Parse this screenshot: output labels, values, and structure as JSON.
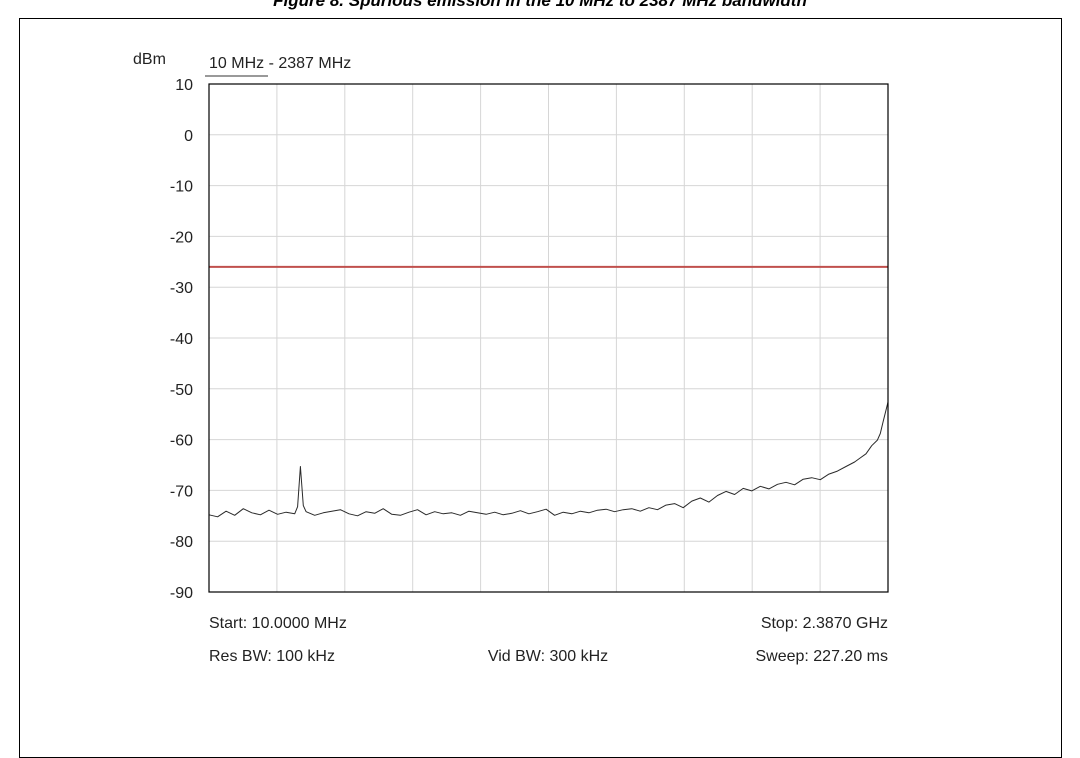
{
  "caption": "Figure 8. Spurious emission in the 10 MHz to 2387 MHz bandwidth",
  "chart_data": {
    "type": "line",
    "title": "10 MHz - 2387 MHz",
    "ylabel": "dBm",
    "xlabel": "",
    "xlim": [
      10,
      2387
    ],
    "ylim": [
      -90,
      10
    ],
    "yticks": [
      "10",
      "0",
      "-10",
      "-20",
      "-30",
      "-40",
      "-50",
      "-60",
      "-70",
      "-80",
      "-90"
    ],
    "grid": true,
    "x_divisions": 10,
    "series": [
      {
        "name": "",
        "color": "#2a2a2a",
        "x": [
          10,
          40,
          70,
          100,
          130,
          160,
          190,
          220,
          250,
          280,
          310,
          320,
          330,
          340,
          350,
          380,
          410,
          440,
          470,
          500,
          530,
          560,
          590,
          620,
          650,
          680,
          710,
          740,
          770,
          800,
          830,
          860,
          890,
          920,
          950,
          980,
          1010,
          1040,
          1070,
          1100,
          1130,
          1160,
          1190,
          1220,
          1250,
          1280,
          1310,
          1340,
          1370,
          1400,
          1430,
          1460,
          1490,
          1520,
          1550,
          1580,
          1610,
          1640,
          1670,
          1700,
          1730,
          1760,
          1790,
          1820,
          1850,
          1880,
          1910,
          1940,
          1970,
          2000,
          2030,
          2060,
          2090,
          2120,
          2150,
          2180,
          2210,
          2240,
          2270,
          2290,
          2310,
          2330,
          2350,
          2360,
          2370,
          2380,
          2387
        ],
        "values": [
          -74.8,
          -75.2,
          -74.1,
          -74.9,
          -73.6,
          -74.4,
          -74.8,
          -73.9,
          -74.7,
          -74.3,
          -74.6,
          -73.2,
          -65.3,
          -73.0,
          -74.2,
          -74.9,
          -74.4,
          -74.1,
          -73.8,
          -74.6,
          -75.0,
          -74.2,
          -74.5,
          -73.6,
          -74.7,
          -74.9,
          -74.3,
          -73.8,
          -74.8,
          -74.2,
          -74.6,
          -74.4,
          -74.9,
          -74.1,
          -74.4,
          -74.7,
          -74.3,
          -74.8,
          -74.5,
          -74.0,
          -74.6,
          -74.2,
          -73.7,
          -74.9,
          -74.3,
          -74.6,
          -74.1,
          -74.4,
          -73.9,
          -73.7,
          -74.2,
          -73.8,
          -73.6,
          -74.1,
          -73.4,
          -73.8,
          -72.9,
          -72.6,
          -73.4,
          -72.1,
          -71.5,
          -72.3,
          -71.0,
          -70.2,
          -70.8,
          -69.6,
          -70.1,
          -69.2,
          -69.7,
          -68.8,
          -68.4,
          -68.9,
          -67.8,
          -67.5,
          -67.9,
          -66.8,
          -66.2,
          -65.3,
          -64.4,
          -63.6,
          -62.8,
          -61.2,
          -60.1,
          -58.8,
          -56.5,
          -54.2,
          -52.6
        ]
      }
    ],
    "reference_line": {
      "y": -26,
      "color": "#c0504d"
    },
    "footer": {
      "start": "Start: 10.0000 MHz",
      "stop": "Stop: 2.3870 GHz",
      "res_bw": "Res BW: 100 kHz",
      "vid_bw": "Vid BW: 300 kHz",
      "sweep": "Sweep: 227.20 ms"
    }
  }
}
